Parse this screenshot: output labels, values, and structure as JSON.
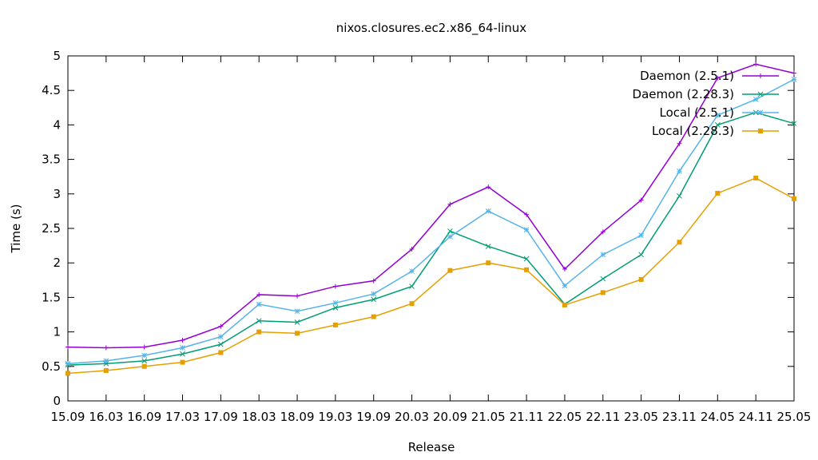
{
  "chart_data": {
    "type": "line",
    "title": "nixos.closures.ec2.x86_64-linux",
    "xlabel": "Release",
    "ylabel": "Time (s)",
    "ylim": [
      0,
      5
    ],
    "yticks": [
      "0",
      "0.5",
      "1",
      "1.5",
      "2",
      "2.5",
      "3",
      "3.5",
      "4",
      "4.5",
      "5"
    ],
    "grid": false,
    "legend_position": "top-right",
    "categories": [
      "15.09",
      "16.03",
      "16.09",
      "17.03",
      "17.09",
      "18.03",
      "18.09",
      "19.03",
      "19.09",
      "20.03",
      "20.09",
      "21.05",
      "21.11",
      "22.05",
      "22.11",
      "23.05",
      "23.11",
      "24.05",
      "24.11",
      "25.05"
    ],
    "series": [
      {
        "name": "Daemon (2.5.1)",
        "color": "#9400d3",
        "marker": "plus",
        "values": [
          0.78,
          0.77,
          0.78,
          0.88,
          1.08,
          1.54,
          1.52,
          1.66,
          1.74,
          2.2,
          2.85,
          3.1,
          2.7,
          1.91,
          2.45,
          2.91,
          3.73,
          4.68,
          4.88,
          4.75
        ]
      },
      {
        "name": "Daemon (2.28.3)",
        "color": "#009e73",
        "marker": "cross",
        "values": [
          0.52,
          0.54,
          0.58,
          0.68,
          0.82,
          1.16,
          1.14,
          1.35,
          1.47,
          1.66,
          2.46,
          2.24,
          2.06,
          1.4,
          1.77,
          2.12,
          2.97,
          4.0,
          4.18,
          4.02
        ]
      },
      {
        "name": "Local (2.5.1)",
        "color": "#56b4e9",
        "marker": "star",
        "values": [
          0.54,
          0.58,
          0.66,
          0.77,
          0.93,
          1.4,
          1.3,
          1.42,
          1.55,
          1.88,
          2.38,
          2.75,
          2.48,
          1.67,
          2.12,
          2.4,
          3.33,
          4.14,
          4.37,
          4.66
        ]
      },
      {
        "name": "Local (2.28.3)",
        "color": "#e69f00",
        "marker": "square",
        "values": [
          0.4,
          0.44,
          0.5,
          0.56,
          0.7,
          1.0,
          0.98,
          1.1,
          1.22,
          1.41,
          1.89,
          2.0,
          1.9,
          1.39,
          1.57,
          1.76,
          2.3,
          3.01,
          3.23,
          2.93
        ]
      }
    ]
  }
}
